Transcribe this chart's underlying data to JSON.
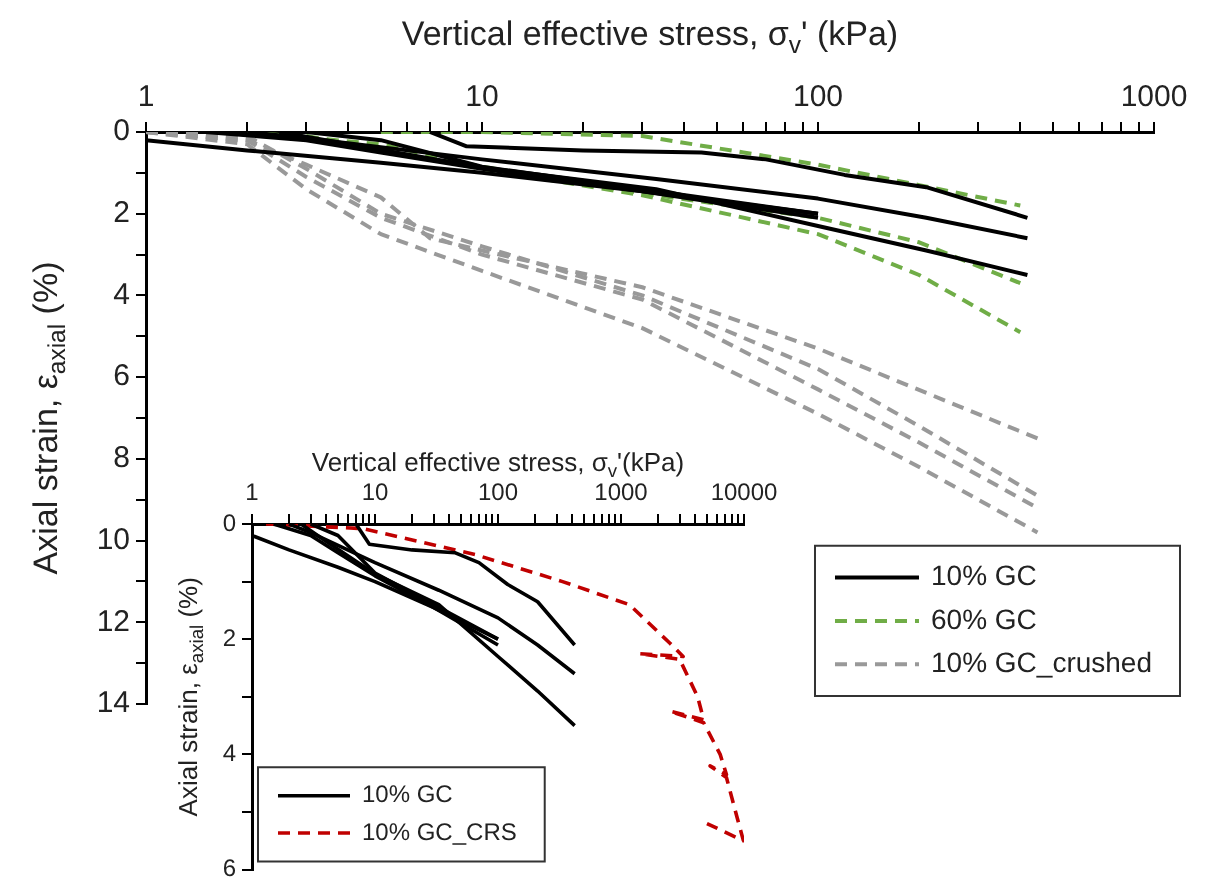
{
  "chart_data": [
    {
      "type": "line",
      "xlabel": "Vertical effective stress, σ$_{v}$' (kPa)",
      "ylabel": "Axial strain, ε$_{axial}$ (%)",
      "log": "x",
      "marker": "none",
      "legend": "bottom right",
      "xlim": [
        1,
        1000
      ],
      "xticks": [
        1,
        {
          "value": 2,
          "label": null
        },
        {
          "value": 3,
          "label": null
        },
        {
          "value": 4,
          "label": null
        },
        {
          "value": 5,
          "label": null
        },
        {
          "value": 6,
          "label": null
        },
        {
          "value": 7,
          "label": null
        },
        {
          "value": 8,
          "label": null
        },
        {
          "value": 9,
          "label": null
        },
        10,
        {
          "value": 20,
          "label": null
        },
        {
          "value": 30,
          "label": null
        },
        {
          "value": 40,
          "label": null
        },
        {
          "value": 50,
          "label": null
        },
        {
          "value": 60,
          "label": null
        },
        {
          "value": 70,
          "label": null
        },
        {
          "value": 80,
          "label": null
        },
        {
          "value": 90,
          "label": null
        },
        100,
        {
          "value": 200,
          "label": null
        },
        {
          "value": 300,
          "label": null
        },
        {
          "value": 400,
          "label": null
        },
        {
          "value": 500,
          "label": null
        },
        {
          "value": 600,
          "label": null
        },
        {
          "value": 700,
          "label": null
        },
        {
          "value": 800,
          "label": null
        },
        {
          "value": 900,
          "label": null
        },
        1000
      ],
      "ylim": [
        14,
        0
      ],
      "yticks": [
        0,
        {
          "value": 1,
          "label": null
        },
        2,
        {
          "value": 3,
          "label": null
        },
        4,
        {
          "value": 5,
          "label": null
        },
        6,
        {
          "value": 7,
          "label": null
        },
        8,
        {
          "value": 9,
          "label": null
        },
        10,
        {
          "value": 11,
          "label": null
        },
        12,
        {
          "value": 13,
          "label": null
        },
        14
      ],
      "series": [
        {
          "name": "10% GC",
          "type": "line",
          "line_style": "solid",
          "color": "#000000",
          "x": [
            1,
            2,
            5,
            10,
            30,
            100
          ],
          "values": [
            0.2,
            0.45,
            0.75,
            1.0,
            1.45,
            2.0
          ]
        },
        {
          "type": "line",
          "line_style": "solid",
          "color": "#000000",
          "x": [
            1.5,
            3,
            5,
            10,
            30,
            100
          ],
          "values": [
            0,
            0.2,
            0.5,
            0.9,
            1.45,
            2.1
          ]
        },
        {
          "type": "line",
          "line_style": "solid",
          "color": "#000000",
          "x": [
            3,
            5,
            10,
            30,
            100
          ],
          "values": [
            0,
            0.2,
            0.85,
            1.4,
            2.0
          ]
        },
        {
          "type": "line",
          "line_style": "solid",
          "color": "#000000",
          "x": [
            7,
            9,
            20,
            45,
            70,
            120,
            210,
            420
          ],
          "values": [
            0,
            0.35,
            0.45,
            0.5,
            0.67,
            1.05,
            1.35,
            2.1
          ]
        },
        {
          "type": "line",
          "line_style": "solid",
          "color": "#000000",
          "x": [
            2,
            3,
            10,
            33,
            100,
            210,
            420
          ],
          "values": [
            0,
            0.15,
            0.67,
            1.15,
            1.63,
            2.1,
            2.6
          ]
        },
        {
          "type": "line",
          "line_style": "solid",
          "color": "#000000",
          "x": [
            2.5,
            4,
            10,
            33,
            100,
            210,
            420
          ],
          "values": [
            0,
            0.3,
            0.87,
            1.4,
            2.3,
            2.9,
            3.5
          ]
        },
        {
          "name": "60% GC",
          "type": "line",
          "line_style": "dashed",
          "color": "#70ad47",
          "x": [
            5,
            10,
            30,
            60,
            100,
            200,
            400
          ],
          "values": [
            0,
            0,
            0.1,
            0.5,
            0.8,
            1.3,
            1.8
          ]
        },
        {
          "type": "line",
          "line_style": "dashed",
          "color": "#70ad47",
          "x": [
            2,
            5,
            10,
            30,
            100,
            200,
            400
          ],
          "values": [
            0,
            0.3,
            0.85,
            1.5,
            2.1,
            2.7,
            3.7
          ]
        },
        {
          "type": "line",
          "line_style": "dashed",
          "color": "#70ad47",
          "x": [
            3,
            10,
            30,
            100,
            200,
            400
          ],
          "values": [
            0.1,
            0.9,
            1.55,
            2.5,
            3.5,
            4.9
          ]
        },
        {
          "name": "10% GC_crushed",
          "type": "line",
          "line_style": "dashed",
          "color": "#999999",
          "x": [
            1,
            2,
            3,
            5,
            7,
            10,
            30,
            100,
            450
          ],
          "values": [
            0,
            0.2,
            0.8,
            1.6,
            2.6,
            2.9,
            3.8,
            5.3,
            7.5
          ]
        },
        {
          "type": "line",
          "line_style": "dashed",
          "color": "#999999",
          "x": [
            1,
            2,
            3,
            5,
            10,
            30,
            100,
            200,
            450
          ],
          "values": [
            0,
            0.1,
            0.9,
            2.0,
            2.8,
            4.0,
            5.8,
            7.2,
            8.9
          ]
        },
        {
          "type": "line",
          "line_style": "dashed",
          "color": "#999999",
          "x": [
            1,
            2,
            3,
            5,
            10,
            30,
            100,
            200,
            450
          ],
          "values": [
            0,
            0.2,
            1.1,
            2.1,
            3.0,
            4.1,
            6.3,
            7.6,
            9.2
          ]
        },
        {
          "type": "line",
          "line_style": "dashed",
          "color": "#999999",
          "x": [
            1,
            2,
            3,
            5,
            10,
            30,
            100,
            200,
            450
          ],
          "values": [
            0,
            0.3,
            1.4,
            2.5,
            3.4,
            4.8,
            6.9,
            8.2,
            9.8
          ]
        }
      ]
    },
    {
      "type": "line",
      "xlabel": "Vertical effective stress, σ$_{v}$'(kPa)",
      "ylabel": "Axial strain, ε$_{axial}$ (%)",
      "log": "x",
      "marker": "none",
      "legend": "bottom left",
      "xlim": [
        1,
        10000
      ],
      "xticks": [
        1,
        {
          "value": 2,
          "label": null
        },
        {
          "value": 3,
          "label": null
        },
        {
          "value": 4,
          "label": null
        },
        {
          "value": 5,
          "label": null
        },
        {
          "value": 6,
          "label": null
        },
        {
          "value": 7,
          "label": null
        },
        {
          "value": 8,
          "label": null
        },
        {
          "value": 9,
          "label": null
        },
        10,
        {
          "value": 20,
          "label": null
        },
        {
          "value": 30,
          "label": null
        },
        {
          "value": 40,
          "label": null
        },
        {
          "value": 50,
          "label": null
        },
        {
          "value": 60,
          "label": null
        },
        {
          "value": 70,
          "label": null
        },
        {
          "value": 80,
          "label": null
        },
        {
          "value": 90,
          "label": null
        },
        100,
        {
          "value": 200,
          "label": null
        },
        {
          "value": 300,
          "label": null
        },
        {
          "value": 400,
          "label": null
        },
        {
          "value": 500,
          "label": null
        },
        {
          "value": 600,
          "label": null
        },
        {
          "value": 700,
          "label": null
        },
        {
          "value": 800,
          "label": null
        },
        {
          "value": 900,
          "label": null
        },
        1000,
        {
          "value": 2000,
          "label": null
        },
        {
          "value": 3000,
          "label": null
        },
        {
          "value": 4000,
          "label": null
        },
        {
          "value": 5000,
          "label": null
        },
        {
          "value": 6000,
          "label": null
        },
        {
          "value": 7000,
          "label": null
        },
        {
          "value": 8000,
          "label": null
        },
        {
          "value": 9000,
          "label": null
        },
        10000
      ],
      "ylim": [
        6,
        0
      ],
      "yticks": [
        0,
        {
          "value": 1,
          "label": null
        },
        2,
        {
          "value": 3,
          "label": null
        },
        4,
        {
          "value": 5,
          "label": null
        },
        6
      ],
      "series": [
        {
          "name": "10% GC",
          "type": "line",
          "line_style": "solid",
          "color": "#000000",
          "x": [
            1,
            2,
            5,
            10,
            30,
            100
          ],
          "values": [
            0.2,
            0.45,
            0.75,
            1.0,
            1.45,
            2.0
          ]
        },
        {
          "type": "line",
          "line_style": "solid",
          "color": "#000000",
          "x": [
            1.5,
            3,
            5,
            10,
            30,
            100
          ],
          "values": [
            0,
            0.2,
            0.5,
            0.9,
            1.45,
            2.1
          ]
        },
        {
          "type": "line",
          "line_style": "solid",
          "color": "#000000",
          "x": [
            3,
            5,
            10,
            30,
            100
          ],
          "values": [
            0,
            0.2,
            0.85,
            1.4,
            2.0
          ]
        },
        {
          "type": "line",
          "line_style": "solid",
          "color": "#000000",
          "x": [
            7,
            9,
            20,
            45,
            70,
            120,
            210,
            420
          ],
          "values": [
            0,
            0.35,
            0.45,
            0.5,
            0.67,
            1.05,
            1.35,
            2.1
          ]
        },
        {
          "type": "line",
          "line_style": "solid",
          "color": "#000000",
          "x": [
            2,
            3,
            10,
            33,
            100,
            210,
            420
          ],
          "values": [
            0,
            0.15,
            0.67,
            1.15,
            1.63,
            2.1,
            2.6
          ]
        },
        {
          "type": "line",
          "line_style": "solid",
          "color": "#000000",
          "x": [
            2.5,
            4,
            10,
            33,
            100,
            210,
            420
          ],
          "values": [
            0,
            0.3,
            0.87,
            1.4,
            2.3,
            2.9,
            3.5
          ]
        },
        {
          "name": "10% GC_CRS",
          "type": "line",
          "line_style": "dashed",
          "color": "#c00000",
          "x": [
            1.3,
            8,
            65,
            335,
            1170,
            2500,
            3200,
            1400,
            3000,
            4200,
            4700,
            2500,
            4700,
            6400,
            7200,
            5300,
            7200,
            8800,
            9900,
            5000
          ],
          "values": [
            0,
            0.08,
            0.53,
            1.0,
            1.4,
            2.07,
            2.3,
            2.25,
            2.35,
            3.0,
            3.4,
            3.25,
            3.45,
            4.0,
            4.35,
            4.2,
            4.4,
            5.1,
            5.5,
            5.2
          ]
        }
      ]
    }
  ]
}
